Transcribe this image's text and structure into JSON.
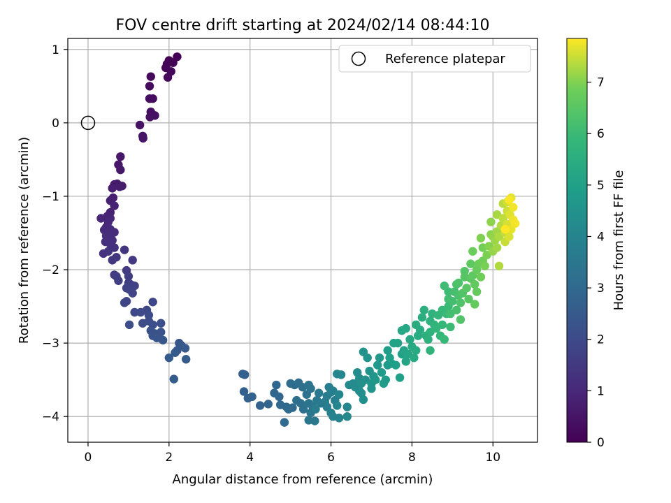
{
  "chart_data": {
    "type": "scatter",
    "title": "FOV centre drift starting at 2024/02/14 08:44:10",
    "xlabel": "Angular distance from reference (arcmin)",
    "ylabel": "Rotation from reference (arcmin)",
    "xlim": [
      -0.5,
      11.1
    ],
    "ylim": [
      -4.35,
      1.15
    ],
    "xticks": [
      0,
      2,
      4,
      6,
      8,
      10
    ],
    "yticks": [
      -4,
      -3,
      -2,
      -1,
      0,
      1
    ],
    "grid": true,
    "legend": {
      "placement": "top-right",
      "entries": [
        {
          "label": "Reference platepar",
          "marker": "open-circle"
        }
      ]
    },
    "reference_point": {
      "x": 0,
      "y": 0
    },
    "colorbar": {
      "label": "Hours from first FF file",
      "colormap": "viridis",
      "range": [
        0,
        7.85
      ],
      "ticks": [
        0,
        1,
        2,
        3,
        4,
        5,
        6,
        7
      ]
    },
    "series": [
      {
        "values_columns": [
          "x",
          "y",
          "hours"
        ],
        "points": [
          [
            2.2,
            0.9
          ],
          [
            2.0,
            0.85
          ],
          [
            1.95,
            0.8
          ],
          [
            2.1,
            0.82
          ],
          [
            1.92,
            0.75
          ],
          [
            2.05,
            0.7
          ],
          [
            1.97,
            0.62
          ],
          [
            1.55,
            0.63
          ],
          [
            1.52,
            0.5
          ],
          [
            1.6,
            0.33
          ],
          [
            1.52,
            0.33
          ],
          [
            1.55,
            0.15
          ],
          [
            1.65,
            0.1
          ],
          [
            1.53,
            0.08
          ],
          [
            1.28,
            -0.03
          ],
          [
            1.35,
            -0.18
          ],
          [
            1.36,
            -0.21
          ],
          [
            0.8,
            -0.46
          ],
          [
            0.75,
            -0.57
          ],
          [
            0.8,
            -0.64
          ],
          [
            0.65,
            -0.84
          ],
          [
            0.72,
            -0.83
          ],
          [
            0.84,
            -0.86
          ],
          [
            0.78,
            -0.87
          ],
          [
            0.6,
            -0.89
          ],
          [
            0.62,
            -1.02
          ],
          [
            0.55,
            -1.06
          ],
          [
            0.65,
            -1.13
          ],
          [
            0.55,
            -1.22
          ],
          [
            0.48,
            -1.27
          ],
          [
            0.55,
            -1.3
          ],
          [
            0.32,
            -1.3
          ],
          [
            0.5,
            -1.35
          ],
          [
            0.45,
            -1.42
          ],
          [
            0.55,
            -1.45
          ],
          [
            0.4,
            -1.46
          ],
          [
            0.65,
            -1.49
          ],
          [
            0.52,
            -1.52
          ],
          [
            0.45,
            -1.54
          ],
          [
            0.6,
            -1.6
          ],
          [
            0.43,
            -1.62
          ],
          [
            0.55,
            -1.65
          ],
          [
            0.65,
            -1.7
          ],
          [
            0.38,
            -1.78
          ],
          [
            0.5,
            -1.75
          ],
          [
            0.9,
            -1.73
          ],
          [
            0.7,
            -1.83
          ],
          [
            0.6,
            -1.87
          ],
          [
            1.1,
            -1.87
          ],
          [
            0.95,
            -2.01
          ],
          [
            0.65,
            -2.07
          ],
          [
            0.7,
            -2.09
          ],
          [
            1.0,
            -2.09
          ],
          [
            0.75,
            -2.15
          ],
          [
            1.0,
            -2.18
          ],
          [
            1.05,
            -2.2
          ],
          [
            1.15,
            -2.22
          ],
          [
            0.95,
            -2.25
          ],
          [
            1.02,
            -2.27
          ],
          [
            1.1,
            -2.32
          ],
          [
            0.95,
            -2.43
          ],
          [
            0.9,
            -2.45
          ],
          [
            1.6,
            -2.44
          ],
          [
            1.45,
            -2.55
          ],
          [
            1.15,
            -2.58
          ],
          [
            1.3,
            -2.58
          ],
          [
            1.5,
            -2.62
          ],
          [
            1.5,
            -2.7
          ],
          [
            1.35,
            -2.73
          ],
          [
            1.02,
            -2.75
          ],
          [
            1.6,
            -2.75
          ],
          [
            1.8,
            -2.73
          ],
          [
            1.55,
            -2.83
          ],
          [
            1.65,
            -2.87
          ],
          [
            1.8,
            -2.85
          ],
          [
            1.6,
            -2.9
          ],
          [
            1.7,
            -2.93
          ],
          [
            1.85,
            -2.96
          ],
          [
            2.25,
            -3.0
          ],
          [
            2.3,
            -3.03
          ],
          [
            2.4,
            -3.07
          ],
          [
            2.2,
            -3.1
          ],
          [
            2.15,
            -3.13
          ],
          [
            2.0,
            -3.2
          ],
          [
            2.42,
            -3.22
          ],
          [
            2.12,
            -3.49
          ],
          [
            3.82,
            -3.42
          ],
          [
            3.87,
            -3.43
          ],
          [
            3.85,
            -3.66
          ],
          [
            3.95,
            -3.75
          ],
          [
            4.05,
            -3.73
          ],
          [
            4.25,
            -3.85
          ],
          [
            4.45,
            -3.83
          ],
          [
            4.6,
            -3.68
          ],
          [
            4.72,
            -3.73
          ],
          [
            4.65,
            -3.57
          ],
          [
            4.75,
            -3.84
          ],
          [
            4.9,
            -3.87
          ],
          [
            4.85,
            -4.08
          ],
          [
            4.95,
            -3.9
          ],
          [
            5.05,
            -3.88
          ],
          [
            5.0,
            -3.55
          ],
          [
            5.1,
            -3.57
          ],
          [
            5.2,
            -3.54
          ],
          [
            5.3,
            -3.6
          ],
          [
            5.15,
            -3.78
          ],
          [
            5.25,
            -3.82
          ],
          [
            5.32,
            -3.9
          ],
          [
            5.4,
            -3.7
          ],
          [
            5.45,
            -3.57
          ],
          [
            5.5,
            -3.62
          ],
          [
            5.45,
            -3.82
          ],
          [
            5.55,
            -3.87
          ],
          [
            5.5,
            -3.95
          ],
          [
            5.45,
            -4.05
          ],
          [
            5.6,
            -4.06
          ],
          [
            5.65,
            -3.78
          ],
          [
            5.7,
            -3.68
          ],
          [
            5.75,
            -3.82
          ],
          [
            5.62,
            -3.9
          ],
          [
            5.85,
            -3.8
          ],
          [
            5.9,
            -3.72
          ],
          [
            5.9,
            -3.87
          ],
          [
            5.95,
            -3.6
          ],
          [
            6.0,
            -3.67
          ],
          [
            6.05,
            -3.65
          ],
          [
            6.1,
            -3.78
          ],
          [
            6.0,
            -3.95
          ],
          [
            6.05,
            -4.0
          ],
          [
            6.2,
            -4.02
          ],
          [
            6.15,
            -3.85
          ],
          [
            6.2,
            -3.7
          ],
          [
            6.25,
            -3.43
          ],
          [
            6.15,
            -3.42
          ],
          [
            6.4,
            -3.87
          ],
          [
            6.4,
            -4.0
          ],
          [
            6.45,
            -3.57
          ],
          [
            6.55,
            -3.55
          ],
          [
            6.6,
            -3.6
          ],
          [
            6.65,
            -3.4
          ],
          [
            6.7,
            -3.48
          ],
          [
            6.7,
            -3.65
          ],
          [
            6.75,
            -3.68
          ],
          [
            6.8,
            -3.77
          ],
          [
            6.75,
            -3.55
          ],
          [
            6.85,
            -3.5
          ],
          [
            6.8,
            -3.12
          ],
          [
            6.9,
            -3.2
          ],
          [
            6.95,
            -3.38
          ],
          [
            7.0,
            -3.55
          ],
          [
            7.0,
            -3.62
          ],
          [
            7.05,
            -3.45
          ],
          [
            7.1,
            -3.5
          ],
          [
            7.15,
            -3.3
          ],
          [
            7.2,
            -3.2
          ],
          [
            7.25,
            -3.4
          ],
          [
            7.3,
            -3.55
          ],
          [
            7.35,
            -3.5
          ],
          [
            7.4,
            -3.3
          ],
          [
            7.5,
            -3.28
          ],
          [
            7.4,
            -3.1
          ],
          [
            7.45,
            -3.2
          ],
          [
            7.6,
            -3.3
          ],
          [
            7.7,
            -3.47
          ],
          [
            7.75,
            -3.15
          ],
          [
            7.55,
            -3.0
          ],
          [
            7.65,
            -3.0
          ],
          [
            7.8,
            -3.1
          ],
          [
            7.85,
            -3.25
          ],
          [
            7.9,
            -3.15
          ],
          [
            7.75,
            -2.83
          ],
          [
            7.85,
            -2.8
          ],
          [
            7.95,
            -2.95
          ],
          [
            8.0,
            -3.05
          ],
          [
            8.05,
            -3.2
          ],
          [
            8.1,
            -3.1
          ],
          [
            8.15,
            -2.9
          ],
          [
            8.2,
            -2.82
          ],
          [
            8.1,
            -2.75
          ],
          [
            8.25,
            -2.65
          ],
          [
            8.3,
            -2.55
          ],
          [
            8.35,
            -2.9
          ],
          [
            8.4,
            -2.95
          ],
          [
            8.45,
            -2.7
          ],
          [
            8.5,
            -2.6
          ],
          [
            8.45,
            -2.85
          ],
          [
            8.45,
            -3.1
          ],
          [
            8.55,
            -2.75
          ],
          [
            8.6,
            -2.8
          ],
          [
            8.65,
            -2.62
          ],
          [
            8.7,
            -2.9
          ],
          [
            8.75,
            -2.75
          ],
          [
            8.75,
            -2.55
          ],
          [
            8.8,
            -2.95
          ],
          [
            8.85,
            -2.6
          ],
          [
            8.9,
            -2.5
          ],
          [
            8.95,
            -2.78
          ],
          [
            8.9,
            -2.3
          ],
          [
            8.8,
            -2.22
          ],
          [
            8.9,
            -2.4
          ],
          [
            8.95,
            -2.6
          ],
          [
            9.0,
            -2.43
          ],
          [
            9.05,
            -2.3
          ],
          [
            9.1,
            -2.55
          ],
          [
            9.15,
            -2.35
          ],
          [
            9.1,
            -2.2
          ],
          [
            9.15,
            -2.18
          ],
          [
            9.2,
            -2.45
          ],
          [
            9.2,
            -2.68
          ],
          [
            9.25,
            -2.32
          ],
          [
            9.3,
            -2.02
          ],
          [
            9.3,
            -2.1
          ],
          [
            9.35,
            -2.25
          ],
          [
            9.4,
            -2.4
          ],
          [
            9.45,
            -2.12
          ],
          [
            9.45,
            -1.92
          ],
          [
            9.5,
            -2.08
          ],
          [
            9.55,
            -2.2
          ],
          [
            9.55,
            -2.47
          ],
          [
            9.6,
            -2.3
          ],
          [
            9.6,
            -2.0
          ],
          [
            9.5,
            -1.75
          ],
          [
            9.65,
            -1.92
          ],
          [
            9.7,
            -2.1
          ],
          [
            9.75,
            -1.88
          ],
          [
            9.75,
            -1.7
          ],
          [
            9.8,
            -1.95
          ],
          [
            9.85,
            -1.8
          ],
          [
            9.7,
            -1.57
          ],
          [
            9.9,
            -1.68
          ],
          [
            9.95,
            -1.52
          ],
          [
            9.95,
            -1.35
          ],
          [
            10.0,
            -1.55
          ],
          [
            10.0,
            -1.75
          ],
          [
            10.05,
            -1.6
          ],
          [
            10.1,
            -1.48
          ],
          [
            10.1,
            -1.7
          ],
          [
            10.1,
            -1.25
          ],
          [
            10.15,
            -1.55
          ],
          [
            10.15,
            -1.95
          ],
          [
            10.2,
            -1.4
          ],
          [
            10.25,
            -1.1
          ],
          [
            10.25,
            -1.3
          ],
          [
            10.3,
            -1.5
          ],
          [
            10.3,
            -1.62
          ],
          [
            10.35,
            -1.2
          ],
          [
            10.35,
            -1.08
          ],
          [
            10.35,
            -1.38
          ],
          [
            10.4,
            -1.55
          ],
          [
            10.42,
            -1.25
          ],
          [
            10.45,
            -1.02
          ],
          [
            10.45,
            -1.45
          ],
          [
            10.5,
            -1.32
          ],
          [
            10.5,
            -1.15
          ],
          [
            10.55,
            -1.37
          ],
          [
            10.4,
            -1.05
          ],
          [
            10.3,
            -1.45
          ]
        ]
      }
    ]
  }
}
